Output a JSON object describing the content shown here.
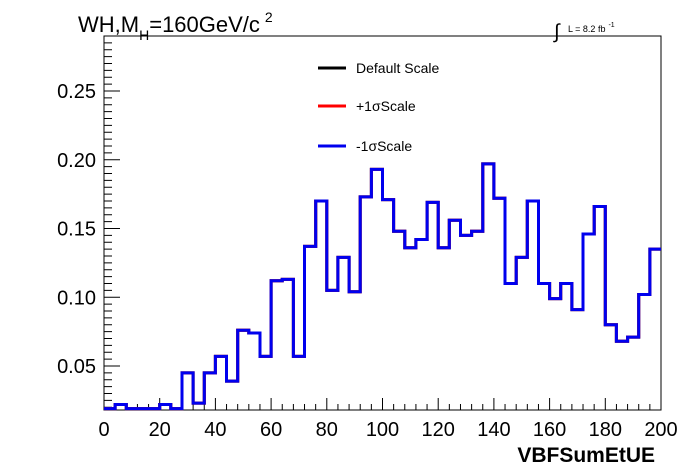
{
  "title": {
    "prefix": "WH,M",
    "subscript": "H",
    "middle": "=160GeV/c",
    "superscript": "2"
  },
  "luminosity": {
    "integral_symbol": "∫",
    "text": "L = 8.2 fb",
    "superscript": "-1"
  },
  "chart_data": {
    "type": "line",
    "style": "step-histogram",
    "xlabel": "VBFSumEtUE",
    "ylabel": "",
    "xlim": [
      0,
      200
    ],
    "ylim": [
      0.018,
      0.29
    ],
    "x_ticks": [
      0,
      20,
      40,
      60,
      80,
      100,
      120,
      140,
      160,
      180,
      200
    ],
    "y_ticks": [
      0.05,
      0.1,
      0.15,
      0.2,
      0.25
    ],
    "y_tick_labels": [
      "0.05",
      "0.10",
      "0.15",
      "0.20",
      "0.25"
    ],
    "grid": false,
    "legend_position": "top-center",
    "bin_width": 4,
    "bins": [
      0,
      4,
      8,
      12,
      16,
      20,
      24,
      28,
      32,
      36,
      40,
      44,
      48,
      52,
      56,
      60,
      64,
      68,
      72,
      76,
      80,
      84,
      88,
      92,
      96,
      100,
      104,
      108,
      112,
      116,
      120,
      124,
      128,
      132,
      136,
      140,
      144,
      148,
      152,
      156,
      160,
      164,
      168,
      172,
      176,
      180,
      184,
      188,
      192,
      196
    ],
    "series": [
      {
        "name": "Default Scale",
        "color": "#000000",
        "values": [
          0.019,
          0.022,
          0.019,
          0.019,
          0.019,
          0.022,
          0.019,
          0.045,
          0.023,
          0.045,
          0.057,
          0.039,
          0.076,
          0.074,
          0.057,
          0.112,
          0.113,
          0.057,
          0.137,
          0.17,
          0.105,
          0.129,
          0.104,
          0.173,
          0.193,
          0.171,
          0.148,
          0.136,
          0.142,
          0.169,
          0.136,
          0.156,
          0.145,
          0.148,
          0.197,
          0.172,
          0.11,
          0.129,
          0.17,
          0.11,
          0.099,
          0.11,
          0.091,
          0.146,
          0.166,
          0.08,
          0.068,
          0.071,
          0.102,
          0.135
        ]
      },
      {
        "name": "+1σScale",
        "color": "#ff0000",
        "values": [
          0.019,
          0.022,
          0.019,
          0.019,
          0.019,
          0.022,
          0.019,
          0.045,
          0.023,
          0.045,
          0.057,
          0.039,
          0.076,
          0.074,
          0.057,
          0.112,
          0.113,
          0.057,
          0.137,
          0.17,
          0.105,
          0.129,
          0.104,
          0.173,
          0.193,
          0.171,
          0.148,
          0.136,
          0.142,
          0.169,
          0.136,
          0.156,
          0.145,
          0.148,
          0.197,
          0.172,
          0.11,
          0.129,
          0.17,
          0.11,
          0.099,
          0.11,
          0.091,
          0.146,
          0.166,
          0.08,
          0.068,
          0.071,
          0.102,
          0.135
        ]
      },
      {
        "name": "-1σScale",
        "color": "#0000ee",
        "values": [
          0.019,
          0.022,
          0.019,
          0.019,
          0.019,
          0.022,
          0.019,
          0.045,
          0.023,
          0.045,
          0.057,
          0.039,
          0.076,
          0.074,
          0.057,
          0.112,
          0.113,
          0.057,
          0.137,
          0.17,
          0.105,
          0.129,
          0.104,
          0.173,
          0.193,
          0.171,
          0.148,
          0.136,
          0.142,
          0.169,
          0.136,
          0.156,
          0.145,
          0.148,
          0.197,
          0.172,
          0.11,
          0.129,
          0.17,
          0.11,
          0.099,
          0.11,
          0.091,
          0.146,
          0.166,
          0.08,
          0.068,
          0.071,
          0.102,
          0.135
        ]
      }
    ]
  }
}
